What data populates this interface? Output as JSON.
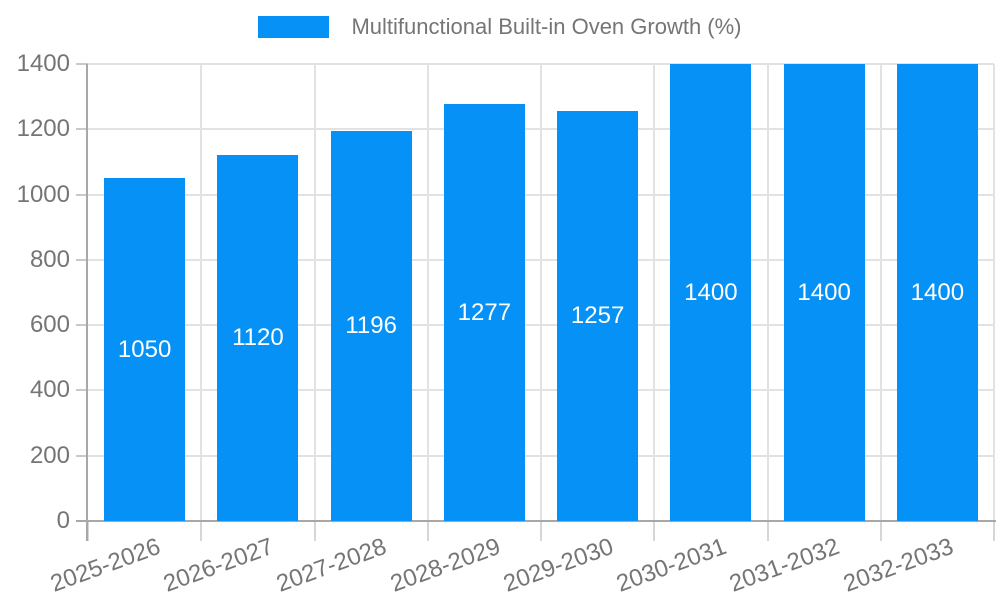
{
  "legend": {
    "label": "Multifunctional Built-in Oven Growth (%)"
  },
  "chart_data": {
    "type": "bar",
    "title": "Multifunctional Built-in Oven Growth (%)",
    "categories": [
      "2025-2026",
      "2026-2027",
      "2027-2028",
      "2028-2029",
      "2029-2030",
      "2030-2031",
      "2031-2032",
      "2032-2033"
    ],
    "series": [
      {
        "name": "Multifunctional Built-in Oven Growth (%)",
        "values": [
          1050,
          1120,
          1196,
          1277,
          1257,
          1400,
          1400,
          1400
        ]
      }
    ],
    "value_labels": [
      "1050",
      "1120",
      "1196",
      "1277",
      "1257",
      "1400",
      "1400",
      "1400"
    ],
    "xlabel": "",
    "ylabel": "",
    "ylim": [
      0,
      1400
    ],
    "yticks": [
      0,
      200,
      400,
      600,
      800,
      1000,
      1200,
      1400
    ],
    "grid": true,
    "legend_position": "top",
    "colors": {
      "bar": "#0591f5",
      "value_label": "#ffffff",
      "axis_text": "#757575",
      "grid_line": "#e2e2e2",
      "axis_line": "#a8a8a8"
    }
  }
}
